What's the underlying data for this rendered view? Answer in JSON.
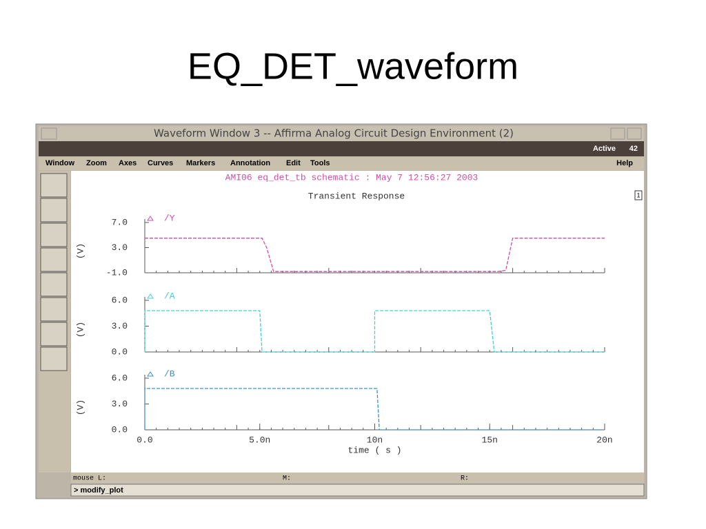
{
  "slide_title": "EQ_DET_waveform",
  "window": {
    "title": "Waveform Window 3 -- Affirma Analog Circuit Design Environment (2)",
    "status": "Active",
    "window_number": 42,
    "menu": [
      "Window",
      "Zoom",
      "Axes",
      "Curves",
      "Markers",
      "Annotation",
      "Edit",
      "Tools"
    ],
    "help": "Help",
    "header": "AMI06 eq_det_tb schematic : May  7 12:56:27 2003",
    "plot_title": "Transient Response",
    "subwindow": "1",
    "mouse": [
      "mouse L:",
      "M:",
      "R:"
    ],
    "command": "> modify_plot"
  },
  "chart_data": [
    {
      "type": "line",
      "y_label": "(V)",
      "x": [
        0,
        5.1e-09,
        5.3e-09,
        5.6e-09,
        1.54e-08,
        1.57e-08,
        1.6e-08,
        2e-08
      ],
      "series": [
        {
          "name": "/Y",
          "color": "#d44aa6",
          "values": [
            4.5,
            4.5,
            3,
            -0.8,
            -0.8,
            -0.6,
            4.5,
            4.5
          ]
        }
      ],
      "xlim": [
        0,
        2e-08
      ],
      "ylim": [
        -1,
        7
      ],
      "yticks": [
        {
          "value": -1,
          "label": "-1.0"
        },
        {
          "value": 3,
          "label": "3.0"
        },
        {
          "value": 7,
          "label": "7.0"
        }
      ]
    },
    {
      "type": "line",
      "y_label": "(V)",
      "x": [
        0,
        0,
        5e-09,
        5.1e-09,
        1e-08,
        1e-08,
        1.5e-08,
        1.52e-08,
        2e-08
      ],
      "series": [
        {
          "name": "/A",
          "color": "#3cd0d8",
          "values": [
            0,
            4.8,
            4.8,
            0,
            0,
            4.8,
            4.8,
            0,
            0
          ]
        }
      ],
      "xlim": [
        0,
        2e-08
      ],
      "ylim": [
        0,
        6
      ],
      "yticks": [
        {
          "value": 0,
          "label": "0.0"
        },
        {
          "value": 3,
          "label": "3.0"
        },
        {
          "value": 6,
          "label": "6.0"
        }
      ]
    },
    {
      "type": "line",
      "y_label": "(V)",
      "x_label": "time ( s )",
      "x": [
        0,
        0,
        1.01e-08,
        1.02e-08,
        2e-08
      ],
      "series": [
        {
          "name": "/B",
          "color": "#3a8fd0",
          "values": [
            0,
            4.8,
            4.8,
            0,
            0
          ]
        }
      ],
      "xlim": [
        0,
        2e-08
      ],
      "ylim": [
        0,
        6
      ],
      "yticks": [
        {
          "value": 0,
          "label": "0.0"
        },
        {
          "value": 3,
          "label": "3.0"
        },
        {
          "value": 6,
          "label": "6.0"
        }
      ],
      "xticks": [
        {
          "value": 0,
          "label": "0.0"
        },
        {
          "value": 5e-09,
          "label": "5.0n"
        },
        {
          "value": 1e-08,
          "label": "10n"
        },
        {
          "value": 1.5e-08,
          "label": "15n"
        },
        {
          "value": 2e-08,
          "label": "20n"
        }
      ]
    }
  ]
}
